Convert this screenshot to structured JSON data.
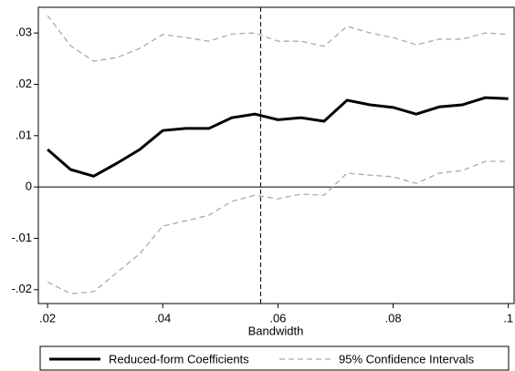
{
  "chart_data": {
    "type": "line",
    "x_label": "Bandwidth",
    "x": [
      0.02,
      0.024,
      0.028,
      0.032,
      0.036,
      0.04,
      0.044,
      0.048,
      0.052,
      0.056,
      0.06,
      0.064,
      0.068,
      0.072,
      0.076,
      0.08,
      0.084,
      0.088,
      0.092,
      0.096,
      0.1
    ],
    "series": [
      {
        "name": "Reduced-form Coefficients",
        "color": "#000000",
        "values": [
          0.0073,
          0.0034,
          0.0021,
          0.0046,
          0.0073,
          0.011,
          0.0114,
          0.0114,
          0.0135,
          0.0142,
          0.0131,
          0.0135,
          0.0128,
          0.0169,
          0.016,
          0.0155,
          0.0142,
          0.0156,
          0.016,
          0.0174,
          0.0172
        ]
      },
      {
        "name": "95% Confidence Intervals",
        "color": "#aaaaaa",
        "upper": [
          0.0334,
          0.0275,
          0.0245,
          0.0252,
          0.027,
          0.0297,
          0.0291,
          0.0284,
          0.0298,
          0.03,
          0.0284,
          0.0284,
          0.0274,
          0.0313,
          0.03,
          0.0291,
          0.0277,
          0.0288,
          0.0288,
          0.03,
          0.0297
        ],
        "lower": [
          -0.0185,
          -0.0208,
          -0.0204,
          -0.0167,
          -0.013,
          -0.0076,
          -0.0066,
          -0.0055,
          -0.0028,
          -0.0016,
          -0.0023,
          -0.0014,
          -0.0016,
          0.0027,
          0.0023,
          0.002,
          0.0007,
          0.0027,
          0.0032,
          0.005,
          0.005
        ]
      }
    ],
    "xlim": [
      0.0184,
      0.101
    ],
    "ylim": [
      -0.0227,
      0.035
    ],
    "xticks": [
      {
        "value": 0.02,
        "label": ".02"
      },
      {
        "value": 0.04,
        "label": ".04"
      },
      {
        "value": 0.06,
        "label": ".06"
      },
      {
        "value": 0.08,
        "label": ".08"
      },
      {
        "value": 0.1,
        "label": ".1"
      }
    ],
    "yticks": [
      {
        "value": -0.02,
        "label": "-.02"
      },
      {
        "value": -0.01,
        "label": "-.01"
      },
      0,
      {
        "value": 0.01,
        "label": ".01"
      },
      {
        "value": 0.02,
        "label": ".02"
      },
      {
        "value": 0.03,
        "label": ".03"
      }
    ],
    "x_reference_line": 0.057,
    "y_reference_line": 0,
    "legend": "bottom"
  }
}
